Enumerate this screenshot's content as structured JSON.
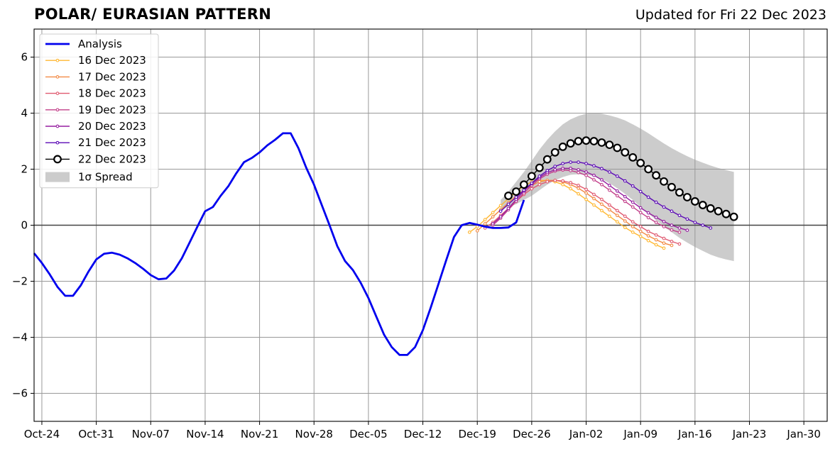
{
  "chart_data": {
    "type": "line",
    "title": "POLAR/ EURASIAN  PATTERN",
    "subtitle": "Updated for Fri 22 Dec 2023",
    "xlabel": "",
    "ylabel": "",
    "x_axis": {
      "type": "date",
      "range": [
        "2023-10-23",
        "2024-02-02"
      ],
      "tick_dates": [
        "2023-10-24",
        "2023-10-31",
        "2023-11-07",
        "2023-11-14",
        "2023-11-21",
        "2023-11-28",
        "2023-12-05",
        "2023-12-12",
        "2023-12-19",
        "2023-12-26",
        "2024-01-02",
        "2024-01-09",
        "2024-01-16",
        "2024-01-23",
        "2024-01-30"
      ],
      "tick_labels": [
        "Oct-24",
        "Oct-31",
        "Nov-07",
        "Nov-14",
        "Nov-21",
        "Nov-28",
        "Dec-05",
        "Dec-12",
        "Dec-19",
        "Dec-26",
        "Jan-02",
        "Jan-09",
        "Jan-16",
        "Jan-23",
        "Jan-30"
      ]
    },
    "y_axis": {
      "range": [
        -7,
        7
      ],
      "ticks": [
        -6,
        -4,
        -2,
        0,
        2,
        4,
        6
      ],
      "tick_labels": [
        "−6",
        "−4",
        "−2",
        "0",
        "2",
        "4",
        "6"
      ]
    },
    "grid": true,
    "zero_line": true,
    "legend_position": "top-left",
    "colors": {
      "analysis": "#0000ee",
      "spread": "#cccccc",
      "grid": "#999999",
      "forecast_22": "#000000"
    },
    "analysis": {
      "name": "Analysis",
      "start_date": "2023-10-23",
      "values": [
        -1.0,
        -1.35,
        -1.75,
        -2.2,
        -2.52,
        -2.52,
        -2.15,
        -1.65,
        -1.22,
        -1.02,
        -0.98,
        -1.05,
        -1.18,
        -1.35,
        -1.55,
        -1.78,
        -1.93,
        -1.9,
        -1.62,
        -1.18,
        -0.62,
        -0.05,
        0.5,
        0.65,
        1.05,
        1.4,
        1.85,
        2.25,
        2.4,
        2.6,
        2.85,
        3.05,
        3.28,
        3.28,
        2.75,
        2.05,
        1.45,
        0.72,
        0.0,
        -0.75,
        -1.28,
        -1.6,
        -2.05,
        -2.6,
        -3.25,
        -3.9,
        -4.35,
        -4.63,
        -4.63,
        -4.35,
        -3.75,
        -2.95,
        -2.1,
        -1.25,
        -0.42,
        0.0,
        0.08,
        0.02,
        -0.05,
        -0.1,
        -0.1,
        -0.08,
        0.1,
        0.9
      ]
    },
    "forecasts": [
      {
        "name": "16 Dec 2023",
        "color": "#ffb833",
        "start_date": "2023-12-18",
        "values": [
          -0.25,
          -0.05,
          0.2,
          0.45,
          0.7,
          0.95,
          1.2,
          1.4,
          1.55,
          1.6,
          1.6,
          1.55,
          1.45,
          1.3,
          1.12,
          0.92,
          0.72,
          0.52,
          0.32,
          0.12,
          -0.08,
          -0.25,
          -0.4,
          -0.55,
          -0.7,
          -0.82
        ]
      },
      {
        "name": "17 Dec 2023",
        "color": "#f28a44",
        "start_date": "2023-12-19",
        "values": [
          -0.2,
          0.05,
          0.3,
          0.55,
          0.8,
          1.05,
          1.25,
          1.42,
          1.55,
          1.6,
          1.6,
          1.55,
          1.45,
          1.32,
          1.15,
          0.95,
          0.75,
          0.55,
          0.35,
          0.15,
          -0.05,
          -0.22,
          -0.38,
          -0.52,
          -0.64,
          -0.72
        ]
      },
      {
        "name": "18 Dec 2023",
        "color": "#e05a70",
        "start_date": "2023-12-20",
        "values": [
          -0.1,
          0.1,
          0.35,
          0.6,
          0.85,
          1.1,
          1.3,
          1.45,
          1.55,
          1.6,
          1.58,
          1.52,
          1.42,
          1.28,
          1.1,
          0.92,
          0.72,
          0.52,
          0.32,
          0.12,
          -0.05,
          -0.22,
          -0.35,
          -0.47,
          -0.58,
          -0.67
        ]
      },
      {
        "name": "19 Dec 2023",
        "color": "#c23f8a",
        "start_date": "2023-12-21",
        "values": [
          0.0,
          0.25,
          0.55,
          0.85,
          1.15,
          1.42,
          1.65,
          1.82,
          1.93,
          1.97,
          1.95,
          1.88,
          1.78,
          1.62,
          1.45,
          1.25,
          1.05,
          0.85,
          0.65,
          0.45,
          0.27,
          0.1,
          -0.05,
          -0.17,
          -0.25
        ]
      },
      {
        "name": "20 Dec 2023",
        "color": "#951ea0",
        "start_date": "2023-12-21",
        "values": [
          0.05,
          0.3,
          0.6,
          0.92,
          1.22,
          1.48,
          1.7,
          1.88,
          1.98,
          2.03,
          2.03,
          1.98,
          1.9,
          1.78,
          1.62,
          1.42,
          1.22,
          1.02,
          0.82,
          0.62,
          0.44,
          0.28,
          0.13,
          0.0,
          -0.1,
          -0.18
        ]
      },
      {
        "name": "21 Dec 2023",
        "color": "#5b0ab5",
        "start_date": "2023-12-22",
        "values": [
          0.5,
          0.75,
          1.0,
          1.25,
          1.5,
          1.75,
          1.95,
          2.1,
          2.2,
          2.25,
          2.25,
          2.2,
          2.12,
          2.02,
          1.9,
          1.75,
          1.58,
          1.4,
          1.2,
          1.0,
          0.82,
          0.65,
          0.5,
          0.35,
          0.22,
          0.1,
          0.0,
          -0.1
        ]
      },
      {
        "name": "22 Dec 2023",
        "color": "#000000",
        "start_date": "2023-12-23",
        "values": [
          1.05,
          1.2,
          1.45,
          1.75,
          2.05,
          2.35,
          2.6,
          2.8,
          2.92,
          3.0,
          3.02,
          3.0,
          2.95,
          2.87,
          2.76,
          2.6,
          2.42,
          2.22,
          2.0,
          1.78,
          1.56,
          1.36,
          1.17,
          1.0,
          0.85,
          0.72,
          0.6,
          0.5,
          0.4,
          0.3
        ]
      }
    ],
    "spread": {
      "name": "1σ Spread",
      "start_date": "2023-12-22",
      "upper": [
        0.9,
        1.2,
        1.55,
        1.9,
        2.3,
        2.7,
        3.05,
        3.35,
        3.6,
        3.78,
        3.9,
        3.98,
        4.0,
        3.98,
        3.92,
        3.84,
        3.74,
        3.6,
        3.45,
        3.28,
        3.1,
        2.92,
        2.75,
        2.6,
        2.46,
        2.34,
        2.23,
        2.13,
        2.04,
        1.97,
        1.9
      ],
      "lower": [
        0.6,
        0.65,
        0.75,
        0.9,
        1.05,
        1.25,
        1.45,
        1.6,
        1.72,
        1.8,
        1.82,
        1.8,
        1.75,
        1.65,
        1.5,
        1.32,
        1.12,
        0.9,
        0.65,
        0.42,
        0.18,
        -0.05,
        -0.25,
        -0.45,
        -0.62,
        -0.78,
        -0.92,
        -1.05,
        -1.15,
        -1.22,
        -1.28
      ]
    }
  }
}
